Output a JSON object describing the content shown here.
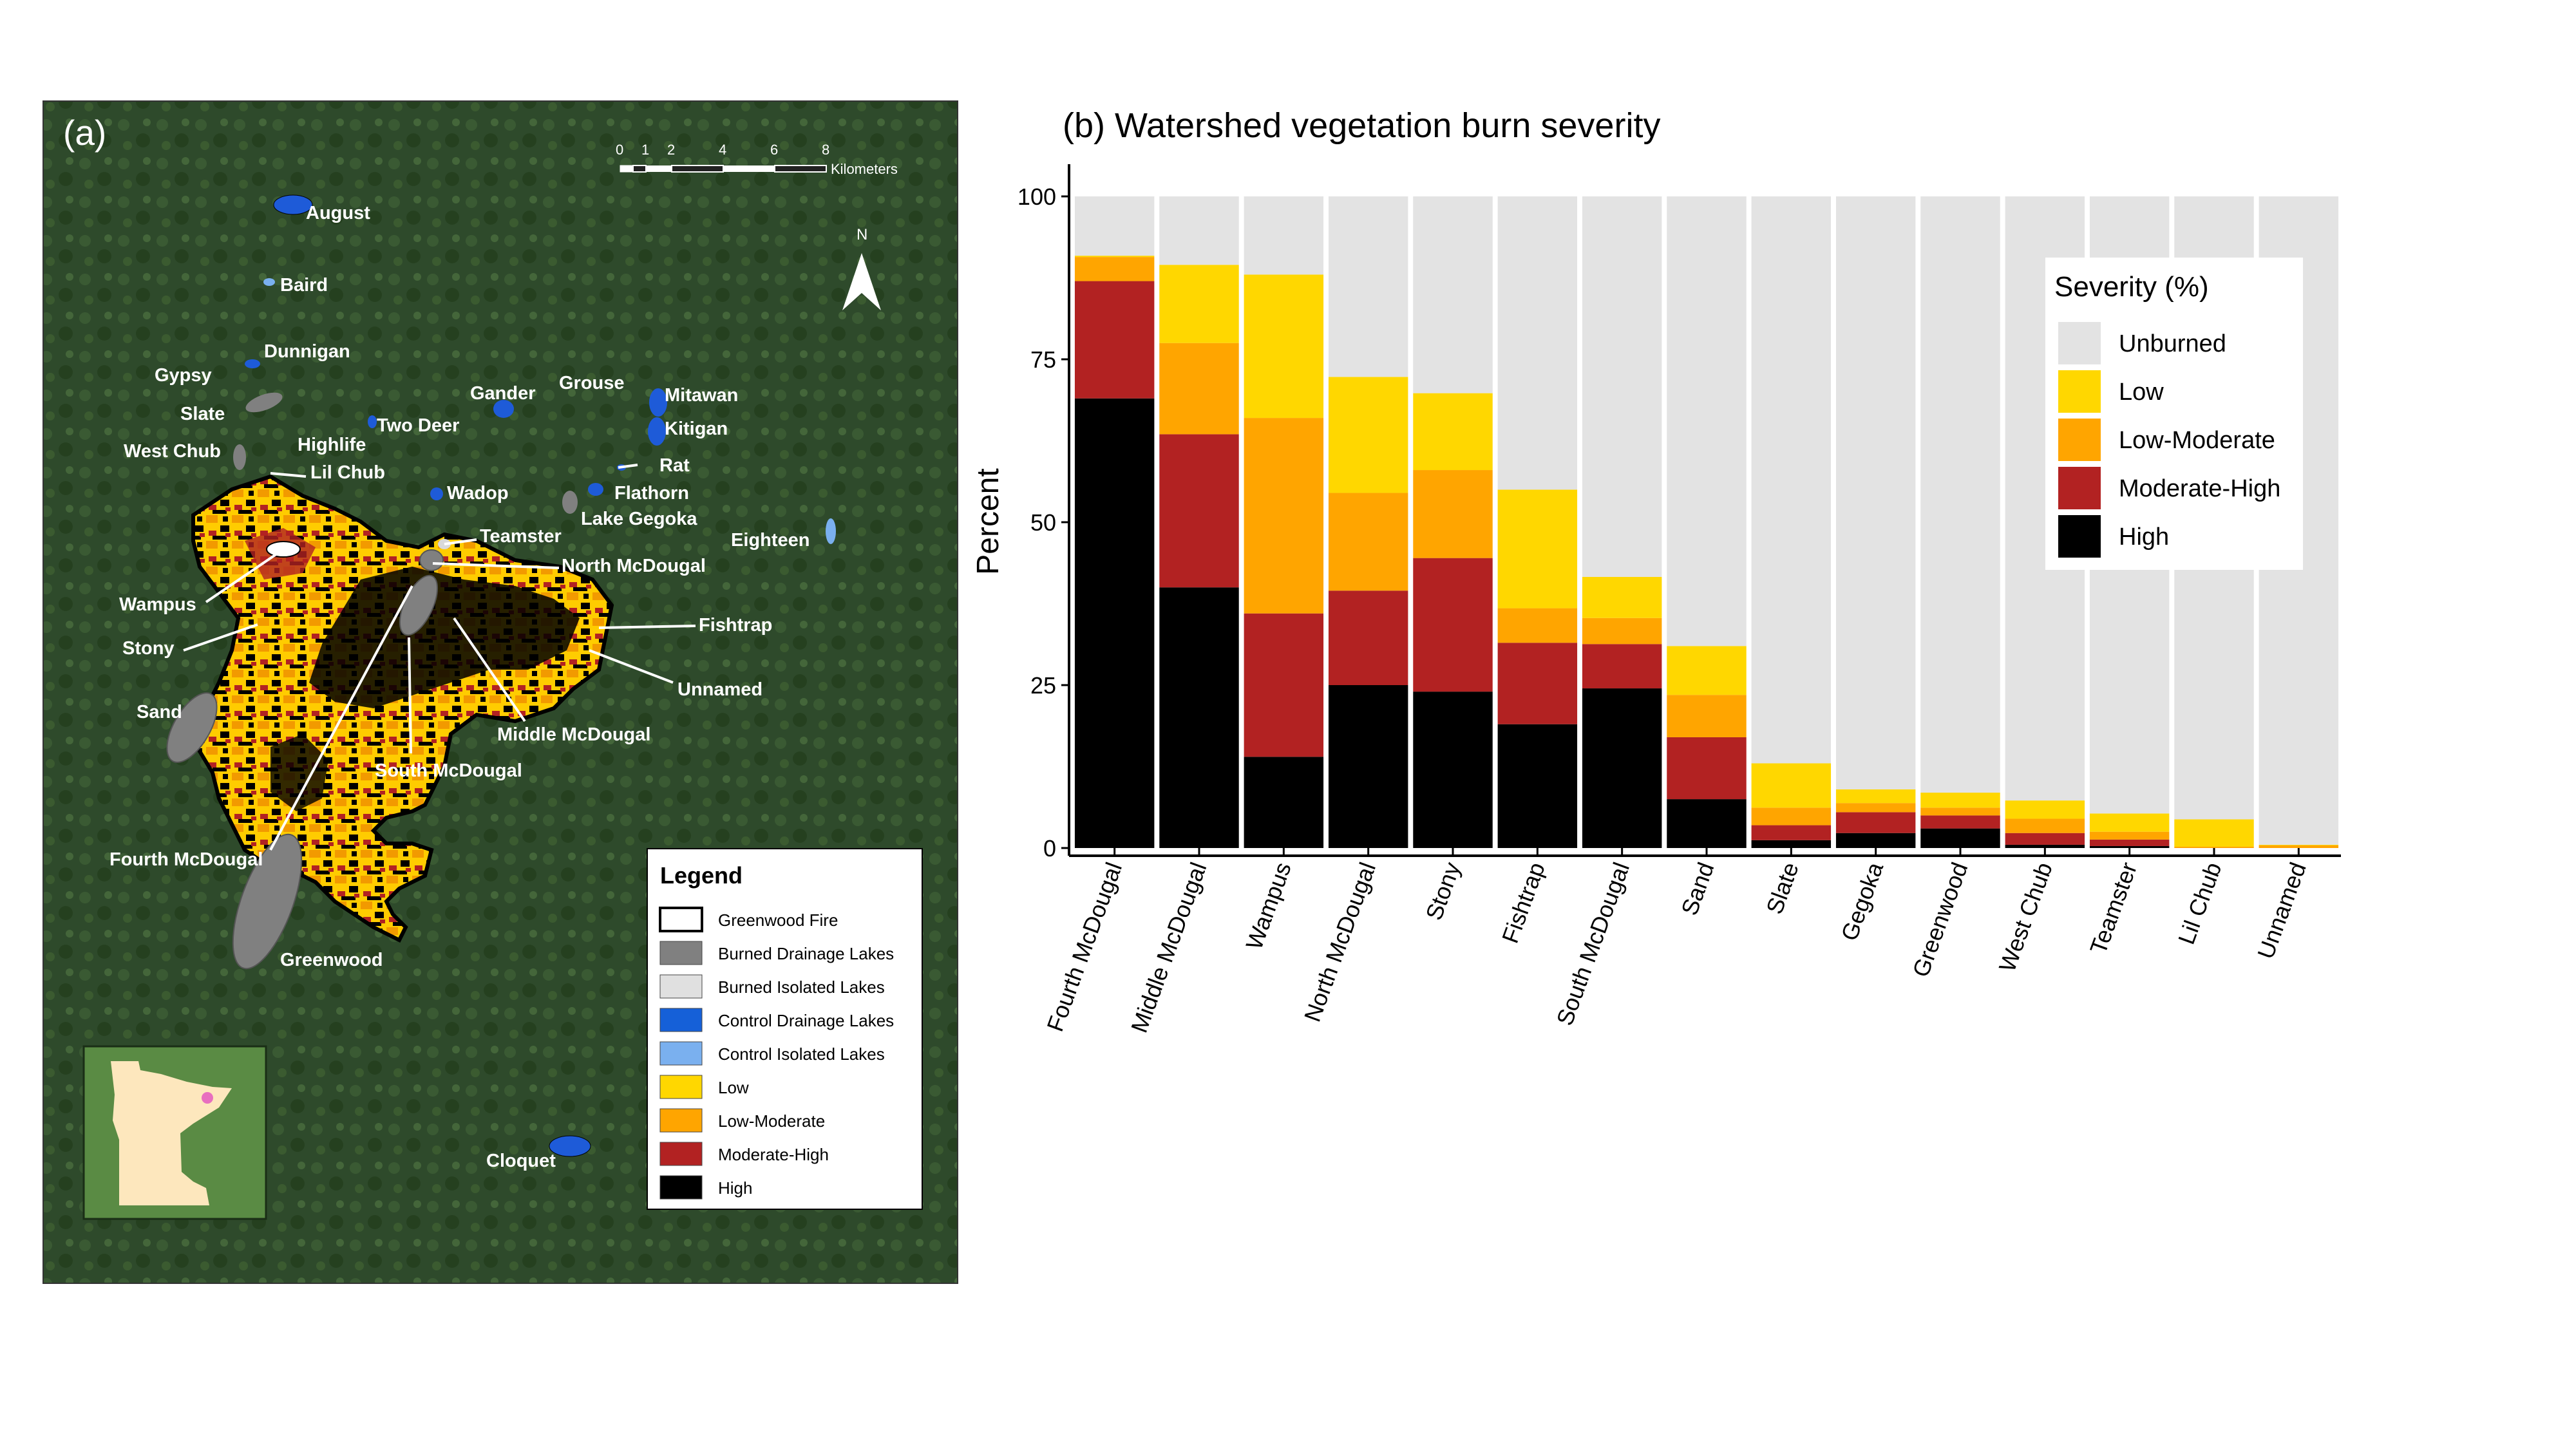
{
  "map": {
    "panel_label": "(a)",
    "scale_ticks": [
      "0",
      "1",
      "2",
      "4",
      "6",
      "8"
    ],
    "scale_unit": "Kilometers",
    "north_label": "N",
    "colors": {
      "background": "#2f4a2a",
      "fire_outline": "#000000",
      "low": "#ffd700",
      "low_moderate": "#ffa500",
      "moderate_high": "#b22222",
      "high": "#000000",
      "burned_drainage": "#808080",
      "burned_isolated": "#d9d9d9",
      "control_drainage": "#1e5bd8",
      "control_isolated": "#7ab0ef"
    },
    "lake_labels": [
      "August",
      "Baird",
      "Dunnigan",
      "Gypsy",
      "Slate",
      "West Chub",
      "Highlife",
      "Lil Chub",
      "Two Deer",
      "Gander",
      "Grouse",
      "Mitawan",
      "Kitigan",
      "Rat",
      "Flathorn",
      "Wadop",
      "Lake Gegoka",
      "Teamster",
      "Eighteen",
      "North McDougal",
      "Wampus",
      "Stony",
      "Fishtrap",
      "Unnamed",
      "Sand",
      "Middle McDougal",
      "South McDougal",
      "Fourth McDougal",
      "Greenwood",
      "Cloquet"
    ],
    "legend": {
      "title": "Legend",
      "items": [
        {
          "label": "Greenwood Fire",
          "color": "#ffffff",
          "outline": "#000000"
        },
        {
          "label": "Burned Drainage Lakes",
          "color": "#808080"
        },
        {
          "label": "Burned Isolated Lakes",
          "color": "#e0e0e0"
        },
        {
          "label": "Control Drainage Lakes",
          "color": "#1560d8"
        },
        {
          "label": "Control Isolated Lakes",
          "color": "#7ab0ef"
        },
        {
          "label": "Low",
          "color": "#ffd700"
        },
        {
          "label": "Low-Moderate",
          "color": "#ffa500"
        },
        {
          "label": "Moderate-High",
          "color": "#b22222"
        },
        {
          "label": "High",
          "color": "#000000"
        }
      ]
    }
  },
  "chart_data": {
    "type": "bar",
    "stacked": true,
    "title": "(b) Watershed vegetation burn severity",
    "xlabel": "",
    "ylabel": "Percent",
    "ylim": [
      0,
      100
    ],
    "yticks": [
      0,
      25,
      50,
      75,
      100
    ],
    "grid": false,
    "legend": {
      "title": "Severity (%)",
      "position": "top-right"
    },
    "categories": [
      "Fourth McDougal",
      "Middle McDougal",
      "Wampus",
      "North McDougal",
      "Stony",
      "Fishtrap",
      "South McDougal",
      "Sand",
      "Slate",
      "Gegoka",
      "Greenwood",
      "West Chub",
      "Teamster",
      "Lil Chub",
      "Unnamed"
    ],
    "series": [
      {
        "name": "High",
        "color": "#000000",
        "values": [
          69,
          40,
          14,
          25,
          24,
          19,
          24.5,
          7.5,
          1.2,
          2.3,
          3,
          0.5,
          0.3,
          0,
          0
        ]
      },
      {
        "name": "Moderate-High",
        "color": "#b22222",
        "values": [
          18,
          23.5,
          22,
          14.5,
          20.5,
          12.5,
          6.8,
          9.5,
          2.3,
          3.2,
          2,
          1.8,
          1.0,
          0,
          0
        ]
      },
      {
        "name": "Low-Moderate",
        "color": "#ffa500",
        "values": [
          3.7,
          14,
          30,
          15,
          13.5,
          5.3,
          4,
          6.5,
          2.7,
          1.4,
          1.2,
          2.2,
          1.2,
          0.2,
          0.4
        ]
      },
      {
        "name": "Low",
        "color": "#ffd700",
        "values": [
          0.2,
          12,
          22,
          17.8,
          11.8,
          18.2,
          6.3,
          7.5,
          6.8,
          2.1,
          2.3,
          2.8,
          2.8,
          4.2,
          0.1
        ]
      },
      {
        "name": "Unburned",
        "color": "#e3e3e3",
        "values": [
          9.1,
          10.5,
          12,
          27.7,
          30.2,
          45,
          58.4,
          69,
          87,
          91,
          91.5,
          92.7,
          94.7,
          95.6,
          99.5
        ]
      }
    ],
    "legend_order": [
      "Unburned",
      "Low",
      "Low-Moderate",
      "Moderate-High",
      "High"
    ]
  }
}
